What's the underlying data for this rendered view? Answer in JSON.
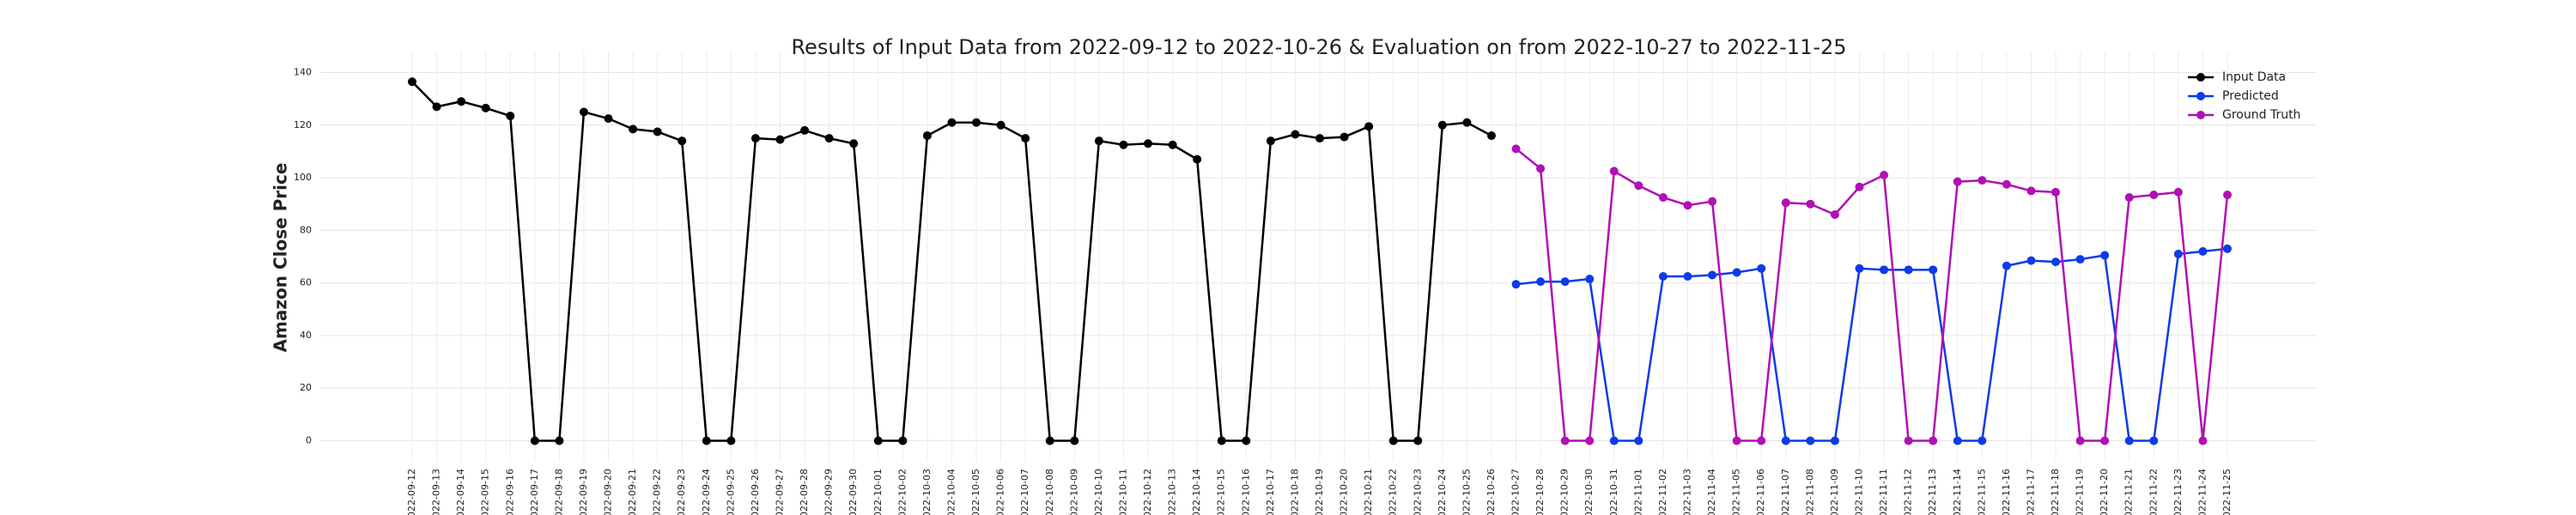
{
  "chart_data": {
    "type": "line",
    "title": "Results of Input Data from 2022-09-12 to 2022-10-26 & Evaluation on from 2022-10-27 to 2022-11-25",
    "ylabel": "Amazon Close Price",
    "x": [
      "2022-09-12",
      "2022-09-13",
      "2022-09-14",
      "2022-09-15",
      "2022-09-16",
      "2022-09-17",
      "2022-09-18",
      "2022-09-19",
      "2022-09-20",
      "2022-09-21",
      "2022-09-22",
      "2022-09-23",
      "2022-09-24",
      "2022-09-25",
      "2022-09-26",
      "2022-09-27",
      "2022-09-28",
      "2022-09-29",
      "2022-09-30",
      "2022-10-01",
      "2022-10-02",
      "2022-10-03",
      "2022-10-04",
      "2022-10-05",
      "2022-10-06",
      "2022-10-07",
      "2022-10-08",
      "2022-10-09",
      "2022-10-10",
      "2022-10-11",
      "2022-10-12",
      "2022-10-13",
      "2022-10-14",
      "2022-10-15",
      "2022-10-16",
      "2022-10-17",
      "2022-10-18",
      "2022-10-19",
      "2022-10-20",
      "2022-10-21",
      "2022-10-22",
      "2022-10-23",
      "2022-10-24",
      "2022-10-25",
      "2022-10-26",
      "2022-10-27",
      "2022-10-28",
      "2022-10-29",
      "2022-10-30",
      "2022-10-31",
      "2022-11-01",
      "2022-11-02",
      "2022-11-03",
      "2022-11-04",
      "2022-11-05",
      "2022-11-06",
      "2022-11-07",
      "2022-11-08",
      "2022-11-09",
      "2022-11-10",
      "2022-11-11",
      "2022-11-12",
      "2022-11-13",
      "2022-11-14",
      "2022-11-15",
      "2022-11-16",
      "2022-11-17",
      "2022-11-18",
      "2022-11-19",
      "2022-11-20",
      "2022-11-21",
      "2022-11-22",
      "2022-11-23",
      "2022-11-24",
      "2022-11-25"
    ],
    "series": [
      {
        "name": "Input Data",
        "color": "#000000",
        "values": [
          136.5,
          127,
          129,
          126.5,
          123.5,
          0,
          0,
          125,
          122.5,
          118.5,
          117.5,
          114,
          0,
          0,
          115,
          114.5,
          118,
          115,
          113,
          0,
          0,
          116,
          121,
          121,
          120,
          115,
          0,
          0,
          114,
          112.5,
          113,
          112.5,
          107,
          0,
          0,
          114,
          116.5,
          115,
          115.5,
          119.5,
          0,
          0,
          120,
          121,
          116,
          null,
          null,
          null,
          null,
          null,
          null,
          null,
          null,
          null,
          null,
          null,
          null,
          null,
          null,
          null,
          null,
          null,
          null,
          null,
          null,
          null,
          null,
          null,
          null,
          null,
          null,
          null,
          null,
          null,
          null
        ]
      },
      {
        "name": "Predicted",
        "color": "#0d3be8",
        "values": [
          null,
          null,
          null,
          null,
          null,
          null,
          null,
          null,
          null,
          null,
          null,
          null,
          null,
          null,
          null,
          null,
          null,
          null,
          null,
          null,
          null,
          null,
          null,
          null,
          null,
          null,
          null,
          null,
          null,
          null,
          null,
          null,
          null,
          null,
          null,
          null,
          null,
          null,
          null,
          null,
          null,
          null,
          null,
          null,
          null,
          59.5,
          60.5,
          60.5,
          61.5,
          0,
          0,
          62.5,
          62.5,
          63,
          64,
          65.5,
          0,
          0,
          0,
          65.5,
          65,
          65,
          65,
          0,
          0,
          66.5,
          68.5,
          68,
          69,
          70.5,
          0,
          0,
          71,
          72,
          73
        ]
      },
      {
        "name": "Ground Truth",
        "color": "#b010b5",
        "values": [
          null,
          null,
          null,
          null,
          null,
          null,
          null,
          null,
          null,
          null,
          null,
          null,
          null,
          null,
          null,
          null,
          null,
          null,
          null,
          null,
          null,
          null,
          null,
          null,
          null,
          null,
          null,
          null,
          null,
          null,
          null,
          null,
          null,
          null,
          null,
          null,
          null,
          null,
          null,
          null,
          null,
          null,
          null,
          null,
          null,
          111,
          103.5,
          0,
          0,
          102.5,
          97,
          92.5,
          89.5,
          91,
          0,
          0,
          90.5,
          90,
          86,
          96.5,
          101,
          0,
          0,
          98.5,
          99,
          97.5,
          95,
          94.5,
          0,
          0,
          92.5,
          93.5,
          94.5,
          0,
          93.5
        ]
      }
    ],
    "ylim": [
      -8,
      148
    ],
    "yticks": [
      0,
      20,
      40,
      60,
      80,
      100,
      120,
      140
    ],
    "grid": true,
    "legend": "upper right"
  }
}
